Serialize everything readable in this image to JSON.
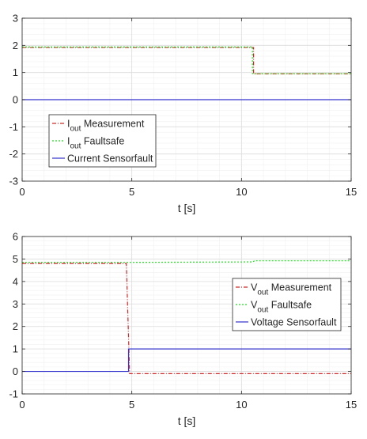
{
  "chart_data": [
    {
      "type": "line",
      "xlabel": "t [s]",
      "ylabel": "",
      "xlim": [
        0,
        15
      ],
      "ylim": [
        -3,
        3
      ],
      "xticks": [
        "0",
        "5",
        "10",
        "15"
      ],
      "yticks": [
        "-3",
        "-2",
        "-1",
        "0",
        "1",
        "2",
        "3"
      ],
      "grid": true,
      "legend_position": "bottom-left",
      "series": [
        {
          "name": "I_out Measurement",
          "legend": {
            "main": "I",
            "sub": "out",
            "rest": " Measurement"
          },
          "color": "#d62728",
          "style": "dashdot",
          "x": [
            0,
            10.55,
            10.55,
            15
          ],
          "y": [
            1.92,
            1.92,
            0.95,
            0.95
          ]
        },
        {
          "name": "I_out Faultsafe",
          "legend": {
            "main": "I",
            "sub": "out",
            "rest": " Faultsafe"
          },
          "color": "#22dd22",
          "style": "dotted",
          "x": [
            0,
            10.5,
            10.5,
            15
          ],
          "y": [
            1.94,
            1.94,
            0.96,
            0.96
          ]
        },
        {
          "name": "Current Sensorfault",
          "legend": {
            "main": "Current Sensorfault",
            "sub": "",
            "rest": ""
          },
          "color": "#3333cc",
          "style": "solid",
          "x": [
            0,
            15
          ],
          "y": [
            0,
            0
          ]
        }
      ]
    },
    {
      "type": "line",
      "xlabel": "t [s]",
      "ylabel": "",
      "xlim": [
        0,
        15
      ],
      "ylim": [
        -1,
        6
      ],
      "xticks": [
        "0",
        "5",
        "10",
        "15"
      ],
      "yticks": [
        "-1",
        "0",
        "1",
        "2",
        "3",
        "4",
        "5",
        "6"
      ],
      "grid": true,
      "legend_position": "right",
      "series": [
        {
          "name": "V_out Measurement",
          "legend": {
            "main": "V",
            "sub": "out",
            "rest": " Measurement"
          },
          "color": "#d62728",
          "style": "dashdot",
          "x": [
            0,
            4.75,
            4.9,
            15
          ],
          "y": [
            4.8,
            4.8,
            -0.1,
            -0.1
          ]
        },
        {
          "name": "V_out Faultsafe",
          "legend": {
            "main": "V",
            "sub": "out",
            "rest": " Faultsafe"
          },
          "color": "#22dd22",
          "style": "dotted",
          "x": [
            0,
            4.85,
            4.9,
            10.5,
            10.6,
            15
          ],
          "y": [
            4.85,
            4.85,
            4.85,
            4.87,
            4.92,
            4.92
          ]
        },
        {
          "name": "Voltage Sensorfault",
          "legend": {
            "main": "Voltage Sensorfault",
            "sub": "",
            "rest": ""
          },
          "color": "#3333cc",
          "style": "solid",
          "x": [
            0,
            4.85,
            4.85,
            15
          ],
          "y": [
            0,
            0,
            1,
            1
          ]
        }
      ]
    }
  ]
}
